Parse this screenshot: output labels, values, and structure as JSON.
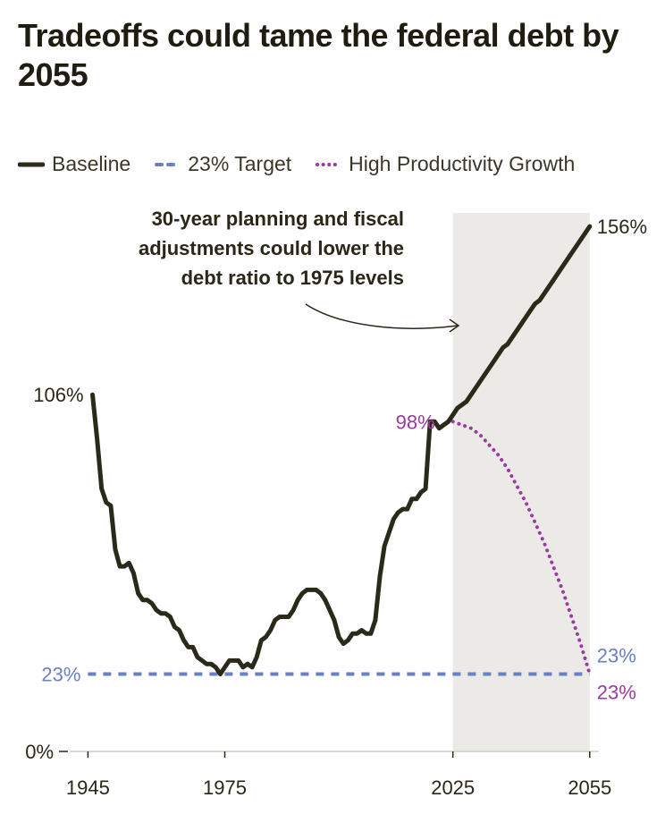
{
  "title": "Tradeoffs could tame the federal debt by 2055",
  "legend": [
    {
      "label": "Baseline",
      "color": "#2b2a1a",
      "style": "solid"
    },
    {
      "label": "23% Target",
      "color": "#6b80c4",
      "style": "dashed"
    },
    {
      "label": "High Productivity Growth",
      "color": "#9b3aa0",
      "style": "dotted"
    }
  ],
  "annotation": {
    "lines": [
      "30-year planning and fiscal",
      "adjustments could lower the",
      "debt ratio to 1975 levels"
    ]
  },
  "chart_data": {
    "type": "line",
    "title": "Tradeoffs could tame the federal debt by 2055",
    "xlabel": "",
    "ylabel": "",
    "xlim": [
      1941,
      2057
    ],
    "ylim": [
      0,
      160
    ],
    "x_ticks": [
      {
        "value": 1945,
        "label": "1945"
      },
      {
        "value": 1975,
        "label": "1975"
      },
      {
        "value": 2025,
        "label": "2025"
      },
      {
        "value": 2055,
        "label": "2055"
      }
    ],
    "y_ticks": [
      {
        "value": 0,
        "label": "0%"
      }
    ],
    "shaded_region": {
      "x_start": 2025,
      "x_end": 2055,
      "color": "#ebeae6"
    },
    "series": [
      {
        "name": "Baseline",
        "color": "#2b2a1a",
        "style": "solid",
        "points": [
          [
            1946,
            106
          ],
          [
            1947,
            93
          ],
          [
            1948,
            78
          ],
          [
            1949,
            74
          ],
          [
            1950,
            73
          ],
          [
            1951,
            60
          ],
          [
            1952,
            55
          ],
          [
            1953,
            55
          ],
          [
            1954,
            56
          ],
          [
            1955,
            53
          ],
          [
            1956,
            47
          ],
          [
            1957,
            45
          ],
          [
            1958,
            45
          ],
          [
            1959,
            44
          ],
          [
            1960,
            42
          ],
          [
            1961,
            41
          ],
          [
            1962,
            41
          ],
          [
            1963,
            40
          ],
          [
            1964,
            37
          ],
          [
            1965,
            36
          ],
          [
            1966,
            33
          ],
          [
            1967,
            31
          ],
          [
            1968,
            31
          ],
          [
            1969,
            28
          ],
          [
            1970,
            27
          ],
          [
            1971,
            26
          ],
          [
            1972,
            26
          ],
          [
            1973,
            25
          ],
          [
            1974,
            23
          ],
          [
            1975,
            25
          ],
          [
            1976,
            27
          ],
          [
            1977,
            27
          ],
          [
            1978,
            27
          ],
          [
            1979,
            25
          ],
          [
            1980,
            26
          ],
          [
            1981,
            25
          ],
          [
            1982,
            28
          ],
          [
            1983,
            33
          ],
          [
            1984,
            34
          ],
          [
            1985,
            36
          ],
          [
            1986,
            39
          ],
          [
            1987,
            40
          ],
          [
            1988,
            40
          ],
          [
            1989,
            40
          ],
          [
            1990,
            42
          ],
          [
            1991,
            45
          ],
          [
            1992,
            47
          ],
          [
            1993,
            48
          ],
          [
            1994,
            48
          ],
          [
            1995,
            48
          ],
          [
            1996,
            47
          ],
          [
            1997,
            45
          ],
          [
            1998,
            42
          ],
          [
            1999,
            39
          ],
          [
            2000,
            34
          ],
          [
            2001,
            32
          ],
          [
            2002,
            33
          ],
          [
            2003,
            35
          ],
          [
            2004,
            35
          ],
          [
            2005,
            36
          ],
          [
            2006,
            35
          ],
          [
            2007,
            35
          ],
          [
            2008,
            39
          ],
          [
            2009,
            52
          ],
          [
            2010,
            61
          ],
          [
            2011,
            65
          ],
          [
            2012,
            69
          ],
          [
            2013,
            71
          ],
          [
            2014,
            72
          ],
          [
            2015,
            72
          ],
          [
            2016,
            75
          ],
          [
            2017,
            75
          ],
          [
            2018,
            77
          ],
          [
            2019,
            78
          ],
          [
            2020,
            98
          ],
          [
            2021,
            98
          ],
          [
            2022,
            96
          ],
          [
            2023,
            97
          ],
          [
            2024,
            98
          ],
          [
            2025,
            100
          ],
          [
            2026,
            102
          ],
          [
            2027,
            103
          ],
          [
            2028,
            104
          ],
          [
            2029,
            106
          ],
          [
            2030,
            108
          ],
          [
            2031,
            110
          ],
          [
            2032,
            112
          ],
          [
            2033,
            114
          ],
          [
            2034,
            116
          ],
          [
            2035,
            118
          ],
          [
            2036,
            120
          ],
          [
            2037,
            121
          ],
          [
            2038,
            123
          ],
          [
            2039,
            125
          ],
          [
            2040,
            127
          ],
          [
            2041,
            129
          ],
          [
            2042,
            131
          ],
          [
            2043,
            133
          ],
          [
            2044,
            134
          ],
          [
            2045,
            136
          ],
          [
            2046,
            138
          ],
          [
            2047,
            140
          ],
          [
            2048,
            142
          ],
          [
            2049,
            144
          ],
          [
            2050,
            146
          ],
          [
            2051,
            148
          ],
          [
            2052,
            150
          ],
          [
            2053,
            152
          ],
          [
            2054,
            154
          ],
          [
            2055,
            156
          ]
        ],
        "labels": [
          {
            "x": 1946,
            "y": 106,
            "text": "106%"
          },
          {
            "x": 2055,
            "y": 156,
            "text": "156%"
          }
        ]
      },
      {
        "name": "23% Target",
        "color": "#6b80c4",
        "style": "dashed",
        "points": [
          [
            1945,
            23
          ],
          [
            2055,
            23
          ]
        ],
        "labels": [
          {
            "x": 1945,
            "y": 23,
            "text": "23%"
          },
          {
            "x": 2055,
            "y": 23,
            "text": "23%"
          }
        ]
      },
      {
        "name": "High Productivity Growth",
        "color": "#9b3aa0",
        "style": "dotted",
        "points": [
          [
            2025,
            98
          ],
          [
            2027,
            97
          ],
          [
            2029,
            96
          ],
          [
            2031,
            94
          ],
          [
            2033,
            91
          ],
          [
            2035,
            88
          ],
          [
            2037,
            84
          ],
          [
            2039,
            79
          ],
          [
            2041,
            74
          ],
          [
            2043,
            68
          ],
          [
            2045,
            62
          ],
          [
            2047,
            55
          ],
          [
            2049,
            48
          ],
          [
            2051,
            40
          ],
          [
            2053,
            32
          ],
          [
            2055,
            23
          ]
        ],
        "labels": [
          {
            "x": 2025,
            "y": 98,
            "text": "98%"
          },
          {
            "x": 2055,
            "y": 23,
            "text": "23%"
          }
        ]
      }
    ]
  }
}
